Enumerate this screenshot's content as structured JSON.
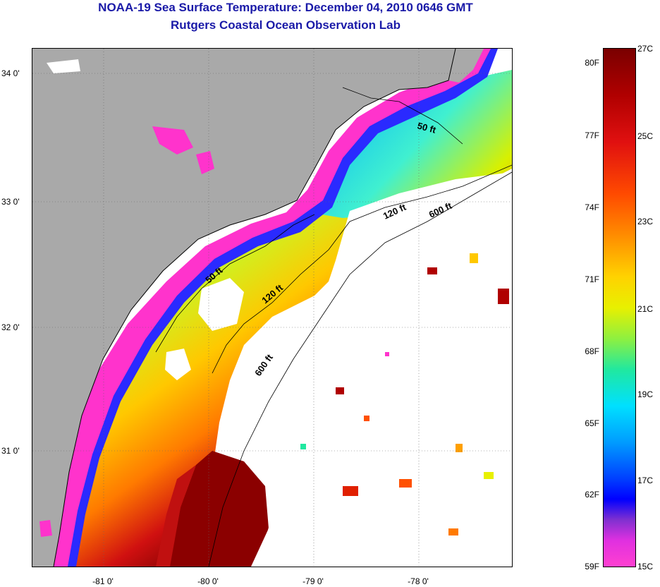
{
  "title_line1": "NOAA-19 Sea Surface Temperature:  December 04, 2010 0646 GMT",
  "title_line2": "Rutgers Coastal Ocean Observation Lab",
  "latitude_labels": [
    "34 0'",
    "33 0'",
    "32 0'",
    "31 0'"
  ],
  "longitude_labels": [
    "-81 0'",
    "-80 0'",
    "-79 0'",
    "-78 0'"
  ],
  "contour_labels": {
    "north_50": "50 ft",
    "north_120": "120 ft",
    "north_600": "600 ft",
    "south_50": "50 ft",
    "south_120": "120 ft",
    "south_600": "600 ft"
  },
  "colorbar": {
    "fahrenheit": [
      "80F",
      "77F",
      "74F",
      "71F",
      "68F",
      "65F",
      "62F",
      "59F"
    ],
    "celsius": [
      "27C",
      "25C",
      "23C",
      "21C",
      "19C",
      "17C",
      "15C"
    ]
  },
  "colors": {
    "title": "#1a1aa8",
    "land": "#a9a9a9",
    "cloud": "#ffffff",
    "coast_pink": "#ff33cc",
    "warm_gulfstream": "#8b0000"
  }
}
